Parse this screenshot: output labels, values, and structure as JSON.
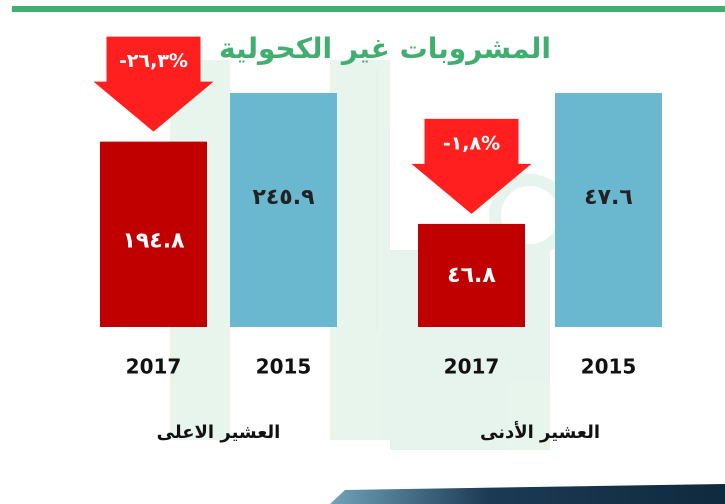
{
  "title": "المشروبات غير الكحولية",
  "chart_data": [
    {
      "type": "bar",
      "xlabel": "العشير الاعلى",
      "categories": [
        "2017",
        "2015"
      ],
      "values": [
        194.8,
        245.9
      ],
      "value_labels": [
        "١٩٤.٨",
        "٢٤٥.٩"
      ],
      "colors": [
        "#c00000",
        "#6ab8cf"
      ],
      "ylim": [
        0,
        245.9
      ],
      "annotation": "-٢٦,٣%"
    },
    {
      "type": "bar",
      "xlabel": "العشير الأدنى",
      "categories": [
        "2017",
        "2015"
      ],
      "values": [
        46.8,
        47.6
      ],
      "value_labels": [
        "٤٦.٨",
        "٤٧.٦"
      ],
      "colors": [
        "#c00000",
        "#6ab8cf"
      ],
      "ylim": [
        46.17,
        47.6
      ],
      "annotation": "-١,٨%"
    }
  ]
}
